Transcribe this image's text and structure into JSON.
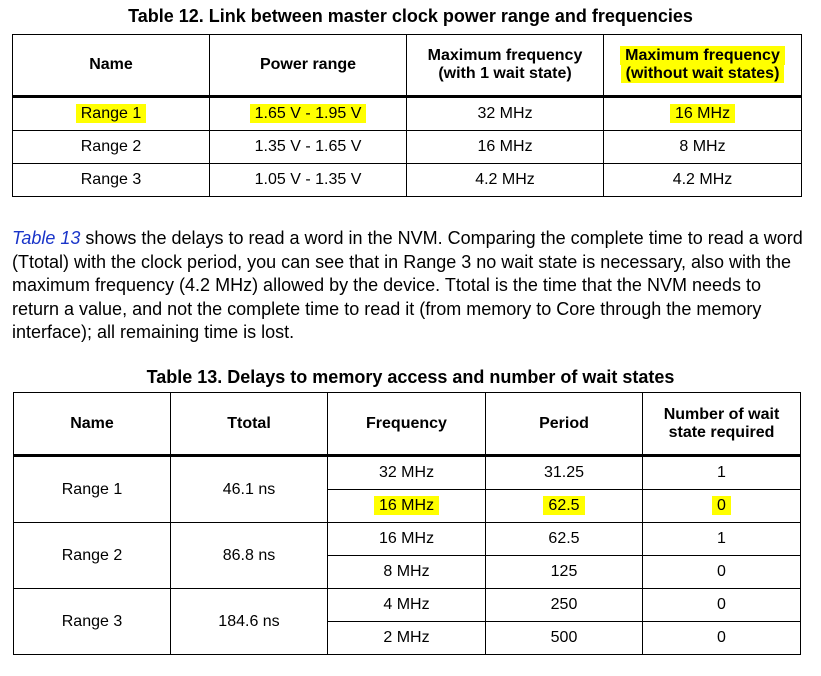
{
  "table12": {
    "caption": "Table 12. Link between master clock power range and frequencies",
    "headers": {
      "name": "Name",
      "power_range": "Power range",
      "max_freq_ws_l1": "Maximum frequency",
      "max_freq_ws_l2": "(with 1 wait state)",
      "max_freq_nows_l1": "Maximum frequency",
      "max_freq_nows_l2": "(without wait states)"
    },
    "rows": [
      {
        "name": "Range 1",
        "power": "1.65 V - 1.95 V",
        "freq1": "32 MHz",
        "freq0": "16 MHz"
      },
      {
        "name": "Range 2",
        "power": "1.35 V - 1.65 V",
        "freq1": "16 MHz",
        "freq0": "8 MHz"
      },
      {
        "name": "Range 3",
        "power": "1.05 V - 1.35 V",
        "freq1": "4.2 MHz",
        "freq0": "4.2 MHz"
      }
    ]
  },
  "paragraph": {
    "link": "Table 13",
    "text": " shows the delays to read a word in the NVM. Comparing the complete time to read a word (Ttotal) with the clock period, you can see that in Range 3 no wait state is necessary, also with the maximum frequency (4.2 MHz) allowed by the device. Ttotal is the time that the NVM needs to return a value, and not the complete time to read it (from memory to Core through the memory interface); all remaining time is lost."
  },
  "table13": {
    "caption": "Table 13. Delays to memory access and number of wait states",
    "headers": {
      "name": "Name",
      "ttotal": "Ttotal",
      "frequency": "Frequency",
      "period": "Period",
      "wait_l1": "Number of wait",
      "wait_l2": "state required"
    },
    "groups": [
      {
        "name": "Range 1",
        "ttotal": "46.1 ns",
        "rows": [
          {
            "freq": "32 MHz",
            "period": "31.25",
            "wait": "1"
          },
          {
            "freq": "16 MHz",
            "period": "62.5",
            "wait": "0"
          }
        ]
      },
      {
        "name": "Range 2",
        "ttotal": "86.8 ns",
        "rows": [
          {
            "freq": "16 MHz",
            "period": "62.5",
            "wait": "1"
          },
          {
            "freq": "8 MHz",
            "period": "125",
            "wait": "0"
          }
        ]
      },
      {
        "name": "Range 3",
        "ttotal": "184.6 ns",
        "rows": [
          {
            "freq": "4 MHz",
            "period": "250",
            "wait": "0"
          },
          {
            "freq": "2 MHz",
            "period": "500",
            "wait": "0"
          }
        ]
      }
    ]
  },
  "highlight_color": "#ffff00",
  "link_color": "#1a35c9"
}
